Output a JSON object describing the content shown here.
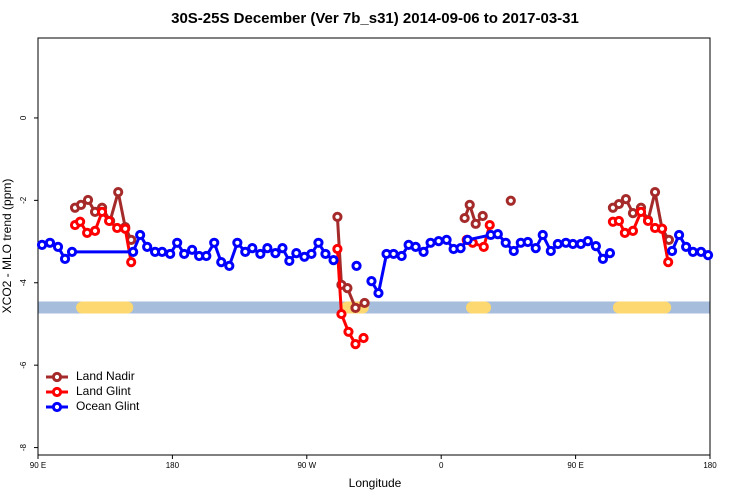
{
  "chart_data": {
    "type": "line",
    "title": "30S-25S December (Ver 7b_s31)   2014-09-06 to 2017-03-31",
    "x_label": "Longitude",
    "y_label": "XCO2 - MLO trend (ppm)",
    "xlim": [
      90,
      540
    ],
    "xticks": [
      {
        "value": 90,
        "label": "90 E"
      },
      180,
      {
        "value": 270,
        "label": "90 W"
      },
      {
        "value": 360,
        "label": "0"
      },
      {
        "value": 450,
        "label": "90 E"
      },
      {
        "value": 540,
        "label": "180"
      }
    ],
    "ylim": [
      -8.18,
      1.94
    ],
    "yticks": [
      0,
      -2,
      -4,
      -6,
      -8
    ],
    "legend": "bottom-left",
    "band": {
      "y": -4.6,
      "color": "#a6bddb",
      "land_color": "#fdd870",
      "land_ranges": [
        [
          115.5,
          153.8
        ],
        [
          292.7,
          311.5
        ],
        [
          376.6,
          393.4
        ],
        [
          475,
          514
        ]
      ]
    },
    "series": [
      {
        "name": "Land Nadir",
        "color": "#a52a2a",
        "x": [
          114.8,
          118.8,
          123.5,
          128.2,
          132.9,
          138.3,
          143.7,
          148.4,
          152.4,
          null,
          290.5,
          293.2,
          297.2,
          302.6,
          308.7,
          null,
          375.7,
          379.1,
          383.1,
          387.8,
          null,
          406.6,
          null,
          475.0,
          479.0,
          483.7,
          488.4,
          493.8,
          498.5,
          503.2,
          507.9,
          512.5
        ],
        "values": [
          -2.18,
          -2.11,
          -1.99,
          -2.28,
          -2.18,
          -2.5,
          -1.8,
          -2.65,
          -2.96,
          null,
          -2.4,
          -4.05,
          -4.13,
          -4.61,
          -4.49,
          null,
          -2.43,
          -2.11,
          -2.57,
          -2.38,
          null,
          -2.01,
          null,
          -2.18,
          -2.09,
          -1.97,
          -2.31,
          -2.18,
          -2.48,
          -1.8,
          -2.69,
          -2.96
        ]
      },
      {
        "name": "Land Glint",
        "color": "#ff0000",
        "x": [
          114.8,
          118.2,
          122.9,
          128.2,
          132.9,
          137.6,
          143.0,
          148.4,
          152.4,
          null,
          290.5,
          293.2,
          297.9,
          302.6,
          308.0,
          null,
          377.1,
          381.1,
          388.5,
          392.5,
          null,
          475.0,
          479.0,
          483.0,
          488.4,
          493.8,
          498.5,
          503.2,
          507.9,
          512.0
        ],
        "values": [
          -2.6,
          -2.52,
          -2.79,
          -2.74,
          -2.28,
          -2.5,
          -2.67,
          -2.69,
          -3.5,
          null,
          -3.18,
          -4.76,
          -5.19,
          -5.49,
          -5.34,
          null,
          -2.96,
          -3.03,
          -3.13,
          -2.6,
          null,
          -2.52,
          -2.5,
          -2.79,
          -2.74,
          -2.28,
          -2.5,
          -2.67,
          -2.69,
          -3.5
        ]
      },
      {
        "name": "Ocean Glint",
        "color": "#0000ff",
        "x": [
          92.7,
          98.0,
          103.4,
          108.1,
          112.8,
          153.7,
          158.4,
          163.1,
          168.4,
          173.1,
          178.5,
          183.2,
          187.9,
          193.2,
          197.9,
          202.7,
          208.0,
          212.7,
          218.1,
          223.5,
          228.8,
          233.5,
          238.9,
          243.6,
          249.0,
          253.7,
          258.3,
          263.0,
          268.4,
          273.1,
          277.8,
          282.5,
          287.9,
          null,
          303.3,
          null,
          313.3,
          318.0,
          323.4,
          328.1,
          333.5,
          338.2,
          342.9,
          348.2,
          352.9,
          358.3,
          363.6,
          368.3,
          373.0,
          377.7,
          393.2,
          397.9,
          403.2,
          408.6,
          413.3,
          418.0,
          423.3,
          428.0,
          433.4,
          438.1,
          443.5,
          448.2,
          453.5,
          458.2,
          463.6,
          468.3,
          473.0,
          null,
          514.6,
          519.3,
          524.0,
          528.6,
          534.0,
          538.7
        ],
        "values": [
          -3.08,
          -3.03,
          -3.13,
          -3.42,
          -3.25,
          -3.25,
          -2.84,
          -3.13,
          -3.25,
          -3.25,
          -3.3,
          -3.03,
          -3.3,
          -3.2,
          -3.35,
          -3.35,
          -3.03,
          -3.5,
          -3.59,
          -3.03,
          -3.25,
          -3.16,
          -3.3,
          -3.16,
          -3.28,
          -3.16,
          -3.47,
          -3.28,
          -3.37,
          -3.3,
          -3.03,
          -3.3,
          -3.45,
          null,
          -3.59,
          null,
          -3.96,
          -4.25,
          -3.3,
          -3.3,
          -3.35,
          -3.08,
          -3.13,
          -3.25,
          -3.03,
          -2.99,
          -2.96,
          -3.18,
          -3.16,
          -2.96,
          -2.84,
          -2.82,
          -3.03,
          -3.23,
          -3.03,
          -3.01,
          -3.16,
          -2.84,
          -3.23,
          -3.06,
          -3.03,
          -3.06,
          -3.06,
          -2.99,
          -3.11,
          -3.42,
          -3.28,
          null,
          -3.23,
          -2.84,
          -3.13,
          -3.25,
          -3.25,
          -3.33
        ]
      }
    ]
  }
}
